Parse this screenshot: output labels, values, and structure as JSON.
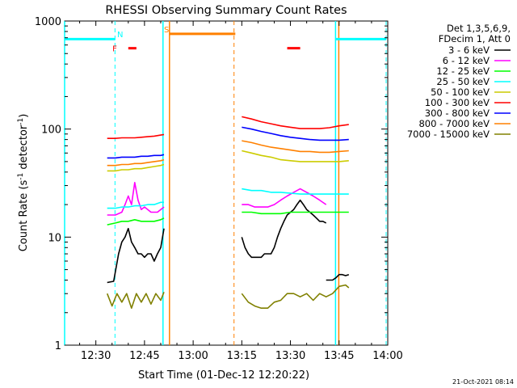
{
  "chart_data": {
    "type": "line",
    "title": "RHESSI Observing Summary Count Rates",
    "xlabel": "Start Time (01-Dec-12 12:20:22)",
    "ylabel_main": "Count Rate (s",
    "ylabel_sup1": "-1",
    "ylabel_mid": " detector",
    "ylabel_sup2": "-1",
    "ylabel_end": ")",
    "yscale": "log",
    "ylim": [
      1,
      1000
    ],
    "xlim_minutes": [
      20.37,
      120
    ],
    "x_ticks": [
      {
        "m": 30,
        "label": "12:30"
      },
      {
        "m": 45,
        "label": "12:45"
      },
      {
        "m": 60,
        "label": "13:00"
      },
      {
        "m": 75,
        "label": "13:15"
      },
      {
        "m": 90,
        "label": "13:30"
      },
      {
        "m": 105,
        "label": "13:45"
      },
      {
        "m": 120,
        "label": "14:00"
      }
    ],
    "y_ticks": [
      {
        "v": 1,
        "label": "1"
      },
      {
        "v": 10,
        "label": "10"
      },
      {
        "v": 100,
        "label": "100"
      },
      {
        "v": 1000,
        "label": "1000"
      }
    ],
    "legend_position": "right",
    "legend_header": [
      "Det 1,3,5,6,9,",
      "FDecim 1, Att 0"
    ],
    "timestamp": "21-Oct-2021 08:14",
    "series": [
      {
        "name": "3 - 6 keV",
        "color": "#000000",
        "segments": [
          {
            "x": [
              33.5,
              35.5,
              37,
              38,
              39,
              40,
              41,
              42,
              43,
              44,
              45,
              46,
              47,
              48,
              49,
              50,
              51
            ],
            "y": [
              3.8,
              3.9,
              7,
              9,
              10,
              12,
              9,
              8,
              7,
              7,
              6.5,
              7,
              7,
              6,
              7,
              8,
              12
            ]
          },
          {
            "x": [
              75,
              76,
              77,
              78,
              79,
              80,
              81,
              82,
              83,
              84,
              85,
              86,
              87,
              88,
              89,
              90,
              91,
              92,
              93,
              94,
              95,
              96,
              97,
              98,
              99,
              100,
              101
            ],
            "y": [
              10,
              8,
              7,
              6.5,
              6.5,
              6.5,
              6.5,
              7,
              7,
              7,
              8,
              10,
              12,
              14,
              16,
              17,
              18,
              20,
              22,
              20,
              18,
              17,
              16,
              15,
              14,
              14,
              13.5
            ]
          },
          {
            "x": [
              101,
              102,
              103,
              104,
              105,
              106,
              107,
              108
            ],
            "y": [
              4,
              4,
              4,
              4.2,
              4.5,
              4.5,
              4.4,
              4.5
            ]
          }
        ]
      },
      {
        "name": "6 - 12 keV",
        "color": "#ff00ff",
        "segments": [
          {
            "x": [
              33.5,
              36,
              38,
              39,
              40,
              41,
              42,
              43,
              44,
              45,
              46,
              47,
              48,
              49,
              50,
              51
            ],
            "y": [
              16,
              16,
              17,
              20,
              24,
              20,
              32,
              22,
              18,
              19,
              18,
              17,
              17,
              17,
              18,
              19
            ]
          },
          {
            "x": [
              75,
              77,
              79,
              81,
              83,
              85,
              87,
              89,
              91,
              93,
              95,
              97,
              99,
              101
            ],
            "y": [
              20,
              20,
              19,
              19,
              19,
              20,
              22,
              24,
              26,
              28,
              26,
              24,
              22,
              20
            ]
          }
        ]
      },
      {
        "name": "12 - 25 keV",
        "color": "#00ff00",
        "segments": [
          {
            "x": [
              33.5,
              36,
              38,
              40,
              42,
              44,
              46,
              48,
              50,
              51
            ],
            "y": [
              13,
              13.5,
              14,
              14,
              14.5,
              14,
              14,
              14,
              14.5,
              15
            ]
          },
          {
            "x": [
              75,
              78,
              81,
              84,
              87,
              90,
              93,
              96,
              99,
              102,
              105,
              108
            ],
            "y": [
              17,
              17,
              16.5,
              16.5,
              16.5,
              17,
              17,
              17,
              17,
              17,
              17,
              17
            ]
          }
        ]
      },
      {
        "name": "25 - 50 keV",
        "color": "#00ffff",
        "segments": [
          {
            "x": [
              33.5,
              36,
              38,
              40,
              42,
              44,
              46,
              48,
              50,
              51
            ],
            "y": [
              18.5,
              18.5,
              19,
              19,
              19.5,
              19.5,
              20,
              20,
              21,
              21
            ]
          },
          {
            "x": [
              75,
              78,
              81,
              84,
              87,
              90,
              93,
              96,
              99,
              102,
              105,
              108
            ],
            "y": [
              28,
              27,
              27,
              26,
              26,
              25.5,
              25,
              25,
              25,
              25,
              25,
              25
            ]
          }
        ]
      },
      {
        "name": "50 - 100 keV",
        "color": "#cccc00",
        "segments": [
          {
            "x": [
              33.5,
              36,
              38,
              40,
              42,
              44,
              46,
              48,
              50,
              51
            ],
            "y": [
              41,
              41,
              42,
              42,
              43,
              43,
              44,
              45,
              46,
              47
            ]
          },
          {
            "x": [
              75,
              78,
              81,
              84,
              87,
              90,
              93,
              96,
              99,
              102,
              105,
              108
            ],
            "y": [
              63,
              60,
              57,
              55,
              52,
              51,
              50,
              50,
              50,
              50,
              50,
              51
            ]
          }
        ]
      },
      {
        "name": "100 - 300 keV",
        "color": "#ff0000",
        "segments": [
          {
            "x": [
              33.5,
              36,
              38,
              40,
              42,
              44,
              46,
              48,
              50,
              51
            ],
            "y": [
              82,
              82,
              83,
              83,
              83,
              84,
              85,
              86,
              88,
              89
            ]
          },
          {
            "x": [
              75,
              78,
              81,
              84,
              87,
              90,
              93,
              96,
              99,
              102,
              105,
              108
            ],
            "y": [
              130,
              124,
              117,
              112,
              107,
              104,
              101,
              101,
              101,
              103,
              107,
              110
            ]
          }
        ]
      },
      {
        "name": "300 - 800 keV",
        "color": "#0000ff",
        "segments": [
          {
            "x": [
              33.5,
              36,
              38,
              40,
              42,
              44,
              46,
              48,
              50,
              51
            ],
            "y": [
              54,
              54,
              55,
              55,
              55,
              56,
              56,
              57,
              57,
              58
            ]
          },
          {
            "x": [
              75,
              78,
              81,
              84,
              87,
              90,
              93,
              96,
              99,
              102,
              105,
              108
            ],
            "y": [
              104,
              100,
              95,
              91,
              87,
              84,
              82,
              80,
              79,
              79,
              79,
              80
            ]
          }
        ]
      },
      {
        "name": "800 - 7000 keV",
        "color": "#ff8000",
        "segments": [
          {
            "x": [
              33.5,
              36,
              38,
              40,
              42,
              44,
              46,
              48,
              50,
              51
            ],
            "y": [
              46,
              46,
              47,
              47,
              48,
              48,
              49,
              50,
              51,
              52
            ]
          },
          {
            "x": [
              75,
              78,
              81,
              84,
              87,
              90,
              93,
              96,
              99,
              102,
              105,
              108
            ],
            "y": [
              78,
              75,
              71,
              68,
              66,
              64,
              62,
              62,
              61,
              61,
              62,
              63
            ]
          }
        ]
      },
      {
        "name": "7000 - 15000 keV",
        "color": "#808000",
        "segments": [
          {
            "x": [
              33.5,
              35,
              36.5,
              38,
              39.5,
              41,
              42.5,
              44,
              45.5,
              47,
              48.5,
              50,
              51
            ],
            "y": [
              3,
              2.3,
              3,
              2.5,
              3,
              2.2,
              3,
              2.5,
              3,
              2.4,
              3,
              2.6,
              3.1
            ]
          },
          {
            "x": [
              75,
              77,
              79,
              81,
              83,
              85,
              87,
              89,
              91,
              93,
              95,
              97,
              99,
              101,
              103,
              105,
              107,
              108
            ],
            "y": [
              3,
              2.5,
              2.3,
              2.2,
              2.2,
              2.5,
              2.6,
              3,
              3,
              2.8,
              3,
              2.6,
              3,
              2.8,
              3,
              3.5,
              3.6,
              3.4
            ]
          }
        ]
      }
    ],
    "overlays": {
      "night_bars": [
        {
          "x1": 20.37,
          "x2": 36,
          "y": 680
        },
        {
          "x1": 104,
          "x2": 119.5,
          "y": 680
        }
      ],
      "saa_bar": {
        "x1": 52.6,
        "x2": 73,
        "y": 760
      },
      "flare_marks": [
        {
          "x1": 40,
          "x2": 42.5,
          "y": 560
        },
        {
          "x1": 89,
          "x2": 93,
          "y": 560
        }
      ],
      "cyan_solid_lines": [
        20.37,
        50.7,
        103.9
      ],
      "cyan_dashed_lines": [
        35.9,
        119.5
      ],
      "orange_solid_lines": [
        52.7,
        104.9
      ],
      "orange_dashed_lines": [
        72.6
      ],
      "letters": [
        {
          "text": "N",
          "x": 37.5,
          "y": 760,
          "color": "#00ffff"
        },
        {
          "text": "F",
          "x": 35.8,
          "y": 560,
          "color": "#ff0000"
        },
        {
          "text": "S",
          "x": 51.8,
          "y": 840,
          "color": "#ff8000"
        }
      ]
    }
  }
}
